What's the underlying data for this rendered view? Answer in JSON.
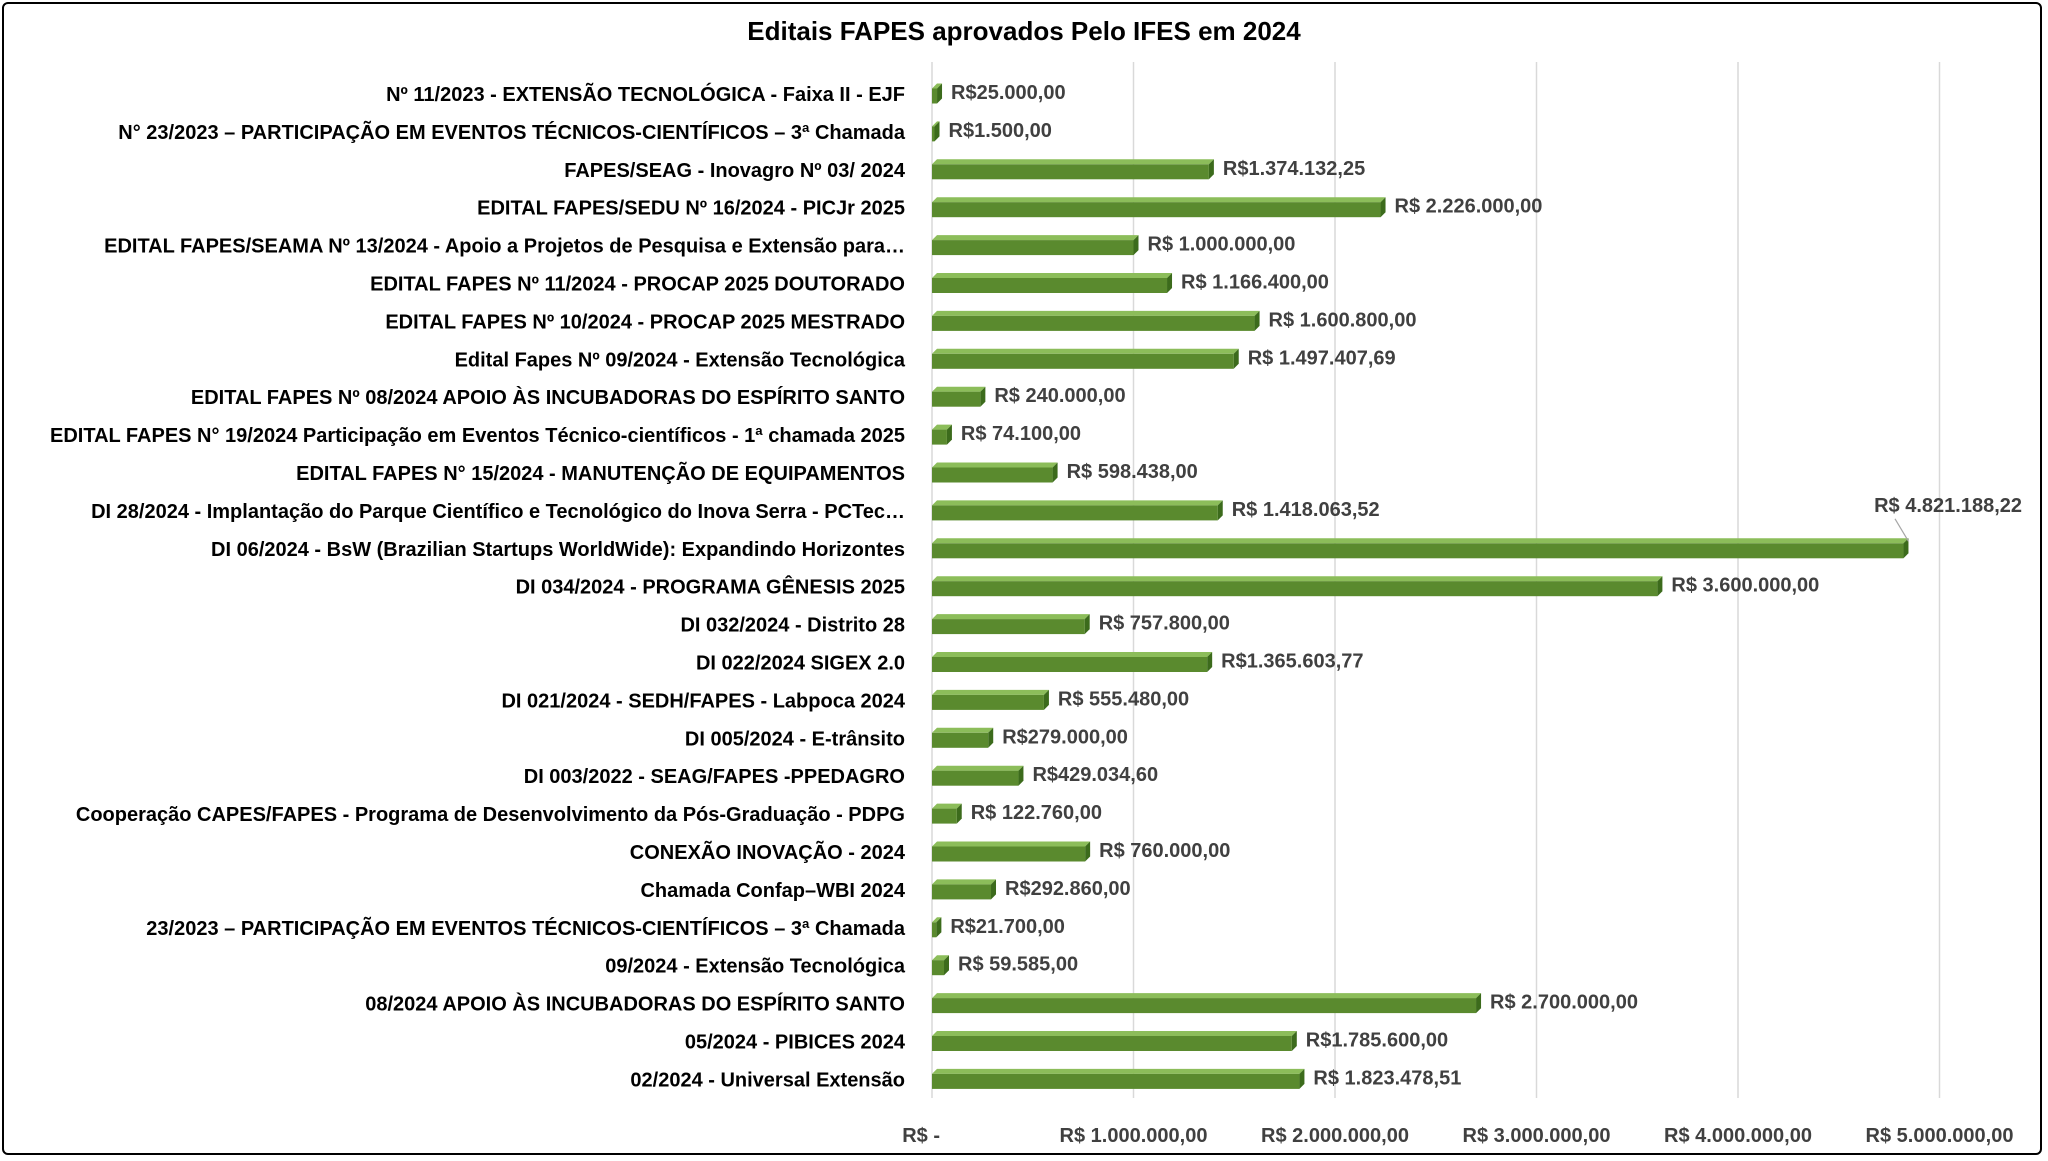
{
  "chart_data": {
    "type": "bar",
    "orientation": "horizontal",
    "title": "Editais FAPES aprovados Pelo IFES em 2024",
    "bar_color": "#5a8a2e",
    "xlim": [
      0,
      5000000
    ],
    "grid": true,
    "legend": "none",
    "x_ticks": [
      0,
      1000000,
      2000000,
      3000000,
      4000000,
      5000000
    ],
    "x_tick_labels": [
      "R$ -",
      "R$ 1.000.000,00",
      "R$ 2.000.000,00",
      "R$ 3.000.000,00",
      "R$ 4.000.000,00",
      "R$ 5.000.000,00"
    ],
    "categories": [
      "Nº 11/2023 - EXTENSÃO TECNOLÓGICA - Faixa II - EJF",
      "N° 23/2023 – PARTICIPAÇÃO EM EVENTOS TÉCNICOS-CIENTÍFICOS – 3ª Chamada",
      "FAPES/SEAG - Inovagro Nº 03/ 2024",
      "EDITAL FAPES/SEDU Nº 16/2024 - PICJr 2025",
      "EDITAL FAPES/SEAMA Nº 13/2024 - Apoio a Projetos de Pesquisa e Extensão para…",
      "EDITAL FAPES Nº 11/2024 - PROCAP 2025 DOUTORADO",
      "EDITAL FAPES Nº 10/2024 - PROCAP 2025 MESTRADO",
      "Edital Fapes Nº 09/2024 - Extensão Tecnológica",
      "EDITAL FAPES Nº 08/2024 APOIO ÀS INCUBADORAS DO ESPÍRITO SANTO",
      "EDITAL FAPES N° 19/2024 Participação em Eventos Técnico-científicos - 1ª chamada 2025",
      "EDITAL FAPES N° 15/2024 - MANUTENÇÃO DE EQUIPAMENTOS",
      "DI 28/2024 - Implantação do Parque Científico e Tecnológico do Inova Serra - PCTec…",
      "DI 06/2024 - BsW (Brazilian Startups WorldWide): Expandindo Horizontes",
      "DI 034/2024 - PROGRAMA GÊNESIS 2025",
      "DI 032/2024 - Distrito 28",
      "DI 022/2024 SIGEX 2.0",
      "DI 021/2024 - SEDH/FAPES - Labpoca 2024",
      "DI 005/2024 - E-trânsito",
      "DI 003/2022 - SEAG/FAPES -PPEDAGRO",
      "Cooperação CAPES/FAPES - Programa de Desenvolvimento da Pós-Graduação - PDPG",
      "CONEXÃO INOVAÇÃO - 2024",
      "Chamada Confap–WBI 2024",
      "23/2023 – PARTICIPAÇÃO EM EVENTOS TÉCNICOS-CIENTÍFICOS – 3ª Chamada",
      "09/2024 - Extensão Tecnológica",
      "08/2024 APOIO ÀS INCUBADORAS DO ESPÍRITO SANTO",
      "05/2024 - PIBICES 2024",
      "02/2024 - Universal Extensão"
    ],
    "values": [
      25000,
      1500,
      1374132.25,
      2226000,
      1000000,
      1166400,
      1600800,
      1497407.69,
      240000,
      74100,
      598438,
      1418063.52,
      4821188.22,
      3600000,
      757800,
      1365603.77,
      555480,
      279000,
      429034.6,
      122760,
      760000,
      292860,
      21700,
      59585,
      2700000,
      1785600,
      1823478.51
    ],
    "data_labels": [
      "R$25.000,00",
      "R$1.500,00",
      "R$1.374.132,25",
      "R$ 2.226.000,00",
      "R$ 1.000.000,00",
      "R$ 1.166.400,00",
      "R$ 1.600.800,00",
      "R$ 1.497.407,69",
      "R$ 240.000,00",
      "R$ 74.100,00",
      "R$ 598.438,00",
      "R$ 1.418.063,52",
      "R$ 4.821.188,22",
      "R$ 3.600.000,00",
      "R$ 757.800,00",
      "R$1.365.603,77",
      "R$ 555.480,00",
      "R$279.000,00",
      "R$429.034,60",
      "R$ 122.760,00",
      "R$ 760.000,00",
      "R$292.860,00",
      "R$21.700,00",
      "R$ 59.585,00",
      "R$ 2.700.000,00",
      "R$1.785.600,00",
      "R$ 1.823.478,51"
    ]
  }
}
